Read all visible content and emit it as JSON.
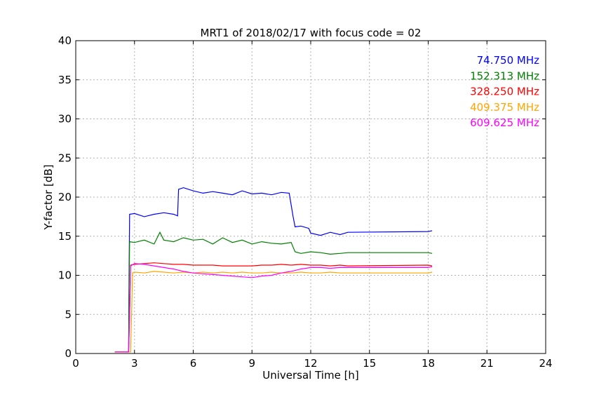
{
  "chart_data": {
    "type": "line",
    "title": "MRT1 of 2018/02/17 with focus code = 02",
    "xlabel": "Universal Time [h]",
    "ylabel": "Y-factor [dB]",
    "xlim": [
      0,
      24
    ],
    "ylim": [
      0,
      40
    ],
    "xticks": [
      "0",
      "3",
      "6",
      "9",
      "12",
      "15",
      "18",
      "21",
      "24"
    ],
    "yticks": [
      "0",
      "5",
      "10",
      "15",
      "20",
      "25",
      "30",
      "35",
      "40"
    ],
    "grid": true,
    "legend_placement": "top-right",
    "series": [
      {
        "name": "74.750 MHz",
        "color": "#0000ff",
        "x": [
          2.0,
          2.7,
          2.72,
          2.75,
          3.0,
          3.5,
          4.0,
          4.5,
          5.0,
          5.2,
          5.25,
          5.5,
          6.0,
          6.5,
          7.0,
          7.5,
          8.0,
          8.5,
          9.0,
          9.5,
          10.0,
          10.5,
          10.9,
          11.0,
          11.1,
          11.2,
          11.5,
          11.9,
          12.0,
          12.5,
          13.0,
          13.5,
          13.9,
          18.0,
          18.2
        ],
        "y": [
          0.2,
          0.2,
          9.0,
          17.8,
          17.9,
          17.5,
          17.8,
          18.0,
          17.8,
          17.6,
          21.0,
          21.2,
          20.8,
          20.5,
          20.7,
          20.5,
          20.3,
          20.8,
          20.4,
          20.5,
          20.3,
          20.6,
          20.5,
          19.0,
          17.5,
          16.2,
          16.3,
          16.0,
          15.4,
          15.1,
          15.5,
          15.2,
          15.5,
          15.6,
          15.7
        ]
      },
      {
        "name": "152.313 MHz",
        "color": "#008000",
        "x": [
          2.0,
          2.7,
          2.72,
          2.75,
          3.0,
          3.5,
          4.0,
          4.3,
          4.5,
          5.0,
          5.5,
          6.0,
          6.5,
          7.0,
          7.5,
          8.0,
          8.5,
          9.0,
          9.5,
          10.0,
          10.5,
          11.0,
          11.2,
          11.5,
          12.0,
          12.5,
          13.0,
          13.5,
          13.9,
          18.0,
          18.2
        ],
        "y": [
          0.2,
          0.2,
          7.0,
          14.3,
          14.2,
          14.5,
          14.0,
          15.5,
          14.5,
          14.3,
          14.8,
          14.5,
          14.6,
          14.0,
          14.8,
          14.2,
          14.5,
          14.0,
          14.3,
          14.1,
          14.0,
          14.2,
          13.0,
          12.8,
          13.0,
          12.9,
          12.7,
          12.8,
          12.9,
          12.9,
          12.8
        ]
      },
      {
        "name": "328.250 MHz",
        "color": "#ff0000",
        "x": [
          2.0,
          2.7,
          2.75,
          2.8,
          3.0,
          3.5,
          4.0,
          4.5,
          5.0,
          5.5,
          6.0,
          6.5,
          7.0,
          7.5,
          8.0,
          8.5,
          9.0,
          9.5,
          10.0,
          10.5,
          11.0,
          11.5,
          12.0,
          12.5,
          13.0,
          13.5,
          13.9,
          18.0,
          18.2
        ],
        "y": [
          0.2,
          0.2,
          5.0,
          11.3,
          11.4,
          11.5,
          11.6,
          11.5,
          11.4,
          11.4,
          11.3,
          11.3,
          11.3,
          11.2,
          11.2,
          11.2,
          11.2,
          11.3,
          11.3,
          11.4,
          11.3,
          11.4,
          11.3,
          11.3,
          11.2,
          11.3,
          11.2,
          11.3,
          11.2
        ]
      },
      {
        "name": "409.375 MHz",
        "color": "#ffa500",
        "x": [
          2.0,
          2.8,
          2.85,
          2.9,
          3.0,
          3.5,
          4.0,
          4.5,
          5.0,
          5.5,
          6.0,
          6.5,
          7.0,
          7.5,
          8.0,
          8.5,
          9.0,
          9.5,
          10.0,
          10.5,
          11.0,
          11.5,
          12.0,
          12.5,
          13.0,
          13.5,
          13.9,
          18.0,
          18.2
        ],
        "y": [
          0.2,
          0.2,
          5.0,
          10.3,
          10.4,
          10.3,
          10.5,
          10.4,
          10.3,
          10.4,
          10.3,
          10.4,
          10.3,
          10.4,
          10.3,
          10.4,
          10.3,
          10.3,
          10.4,
          10.3,
          10.3,
          10.4,
          10.3,
          10.3,
          10.4,
          10.3,
          10.3,
          10.3,
          10.4
        ]
      },
      {
        "name": "609.625 MHz",
        "color": "#ff00ff",
        "x": [
          2.0,
          2.7,
          2.75,
          2.8,
          3.0,
          3.5,
          4.0,
          4.5,
          5.0,
          5.5,
          6.0,
          6.5,
          7.0,
          7.5,
          8.0,
          8.5,
          9.0,
          9.5,
          10.0,
          10.5,
          11.0,
          11.5,
          12.0,
          12.5,
          13.0,
          13.5,
          13.9,
          18.0,
          18.2
        ],
        "y": [
          0.2,
          0.2,
          5.0,
          11.2,
          11.5,
          11.4,
          11.2,
          11.0,
          10.8,
          10.5,
          10.3,
          10.2,
          10.1,
          10.0,
          9.9,
          9.8,
          9.7,
          9.9,
          10.0,
          10.3,
          10.5,
          10.8,
          11.0,
          11.0,
          10.9,
          11.0,
          11.0,
          11.0,
          11.1
        ]
      }
    ]
  }
}
